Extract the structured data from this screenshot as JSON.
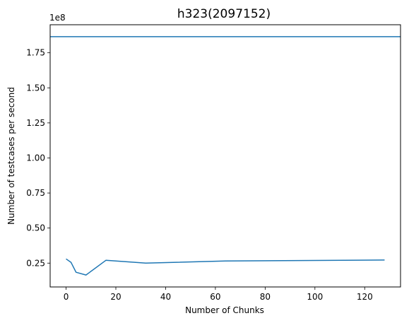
{
  "chart_data": {
    "type": "line",
    "title": "h323(2097152)",
    "xlabel": "Number of Chunks",
    "ylabel": "Number of testcases per second",
    "offset_label": "1e8",
    "y_scale": 100000000,
    "xlim": [
      -6.4,
      134.4
    ],
    "ylim": [
      8000000,
      195000000
    ],
    "x_ticks": [
      0,
      20,
      40,
      60,
      80,
      100,
      120
    ],
    "x_tick_labels": [
      "0",
      "20",
      "40",
      "60",
      "80",
      "100",
      "120"
    ],
    "y_ticks": [
      25000000,
      50000000,
      75000000,
      100000000,
      125000000,
      150000000,
      175000000
    ],
    "y_tick_labels": [
      "0.25",
      "0.50",
      "0.75",
      "1.00",
      "1.25",
      "1.50",
      "1.75"
    ],
    "grid": false,
    "line_color": "#1f77b4",
    "series": [
      {
        "x": [
          0,
          2,
          4,
          8,
          16,
          32,
          64,
          128
        ],
        "values": [
          28000000,
          25500000,
          18500000,
          16500000,
          27000000,
          25000000,
          26500000,
          27200000
        ]
      }
    ],
    "hlines": [
      {
        "y": 186500000
      }
    ]
  }
}
